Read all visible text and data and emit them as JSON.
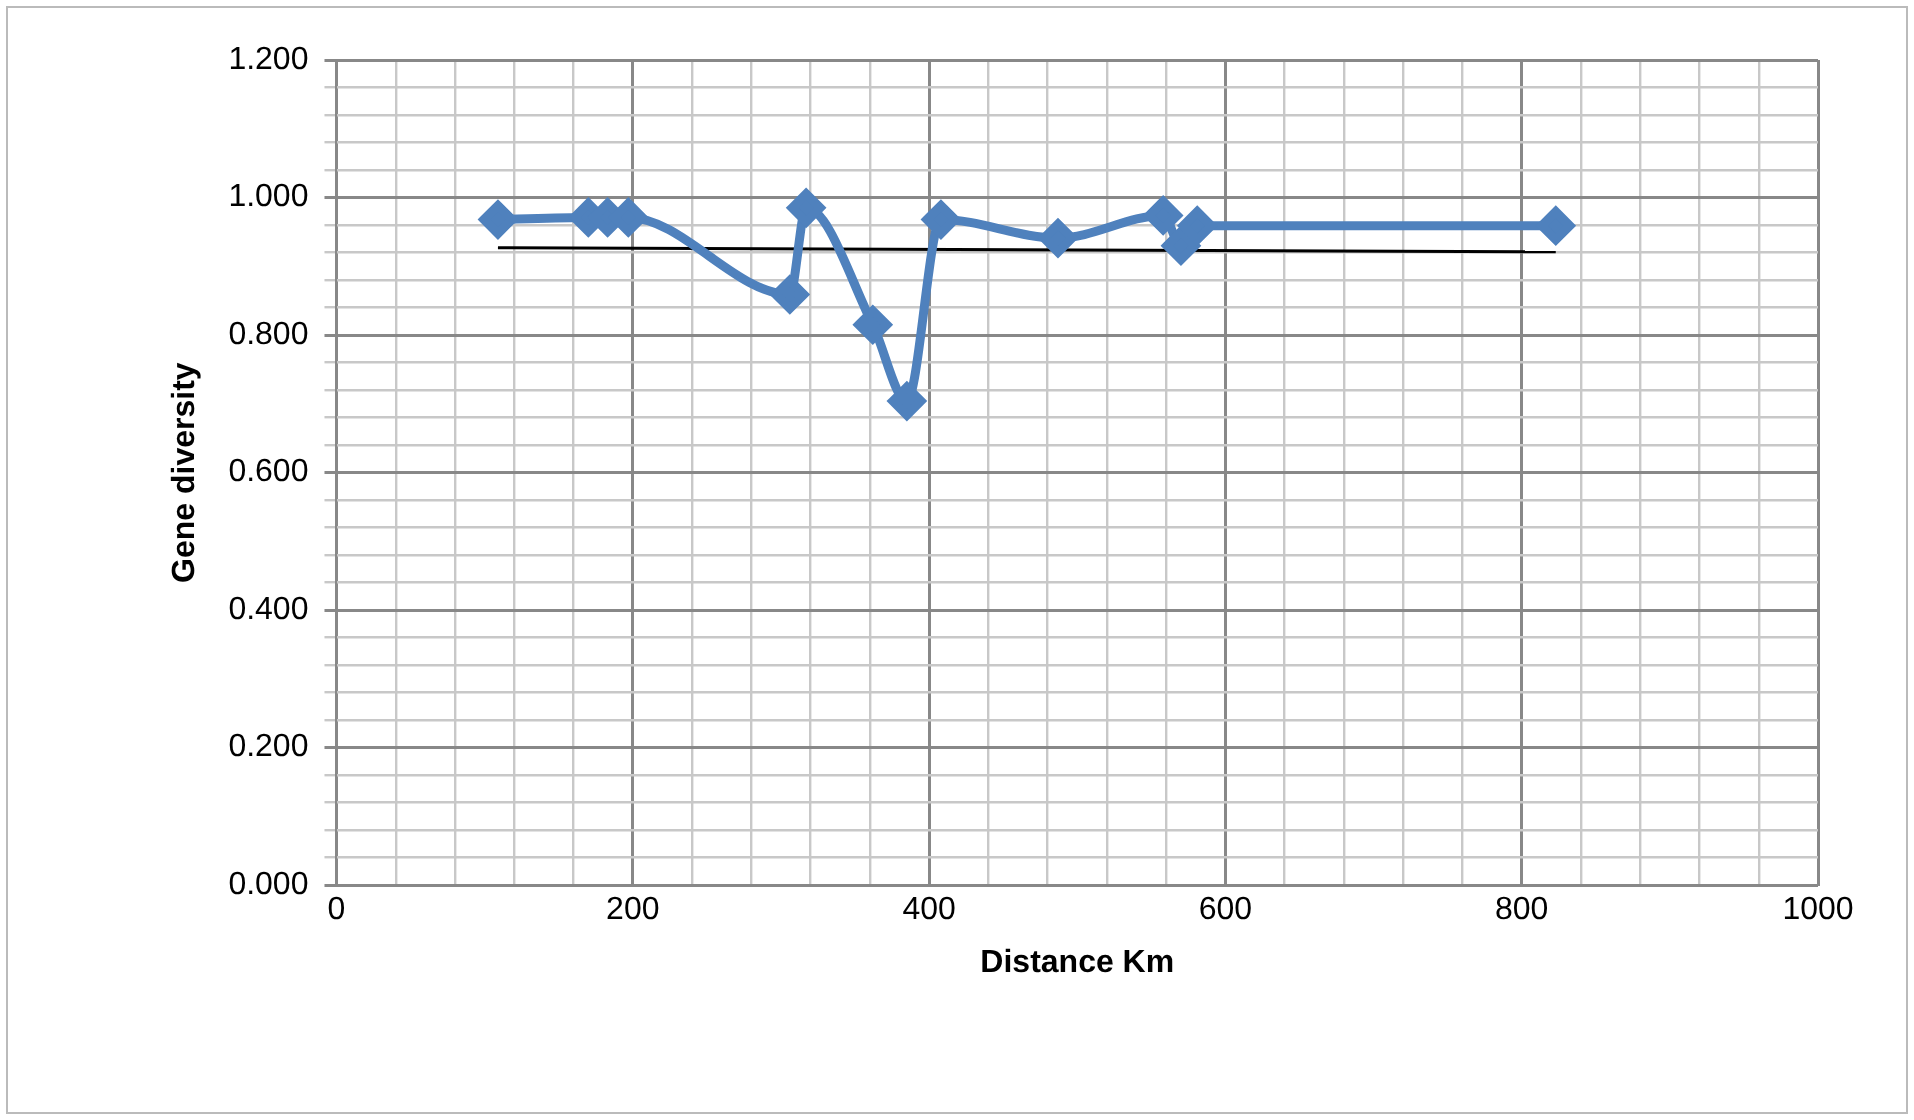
{
  "chart_data": {
    "type": "line",
    "xlabel": "Distance Km",
    "ylabel": "Gene diversity",
    "series": [
      {
        "color": "#4f81bd",
        "marker": "diamond",
        "x": [
          109,
          170,
          183,
          197,
          306,
          317,
          362,
          385,
          408,
          487,
          558,
          570,
          581,
          823
        ],
        "values": [
          0.968,
          0.971,
          0.971,
          0.971,
          0.859,
          0.985,
          0.815,
          0.704,
          0.968,
          0.941,
          0.974,
          0.93,
          0.959,
          0.959
        ]
      },
      {
        "color": "#000000",
        "marker": "none",
        "x": [
          109,
          823
        ],
        "values": [
          0.927,
          0.921
        ]
      }
    ],
    "xlim": [
      0,
      1000
    ],
    "xticks": [
      0,
      {
        "value": 40,
        "label": null
      },
      {
        "value": 80,
        "label": null
      },
      {
        "value": 120,
        "label": null
      },
      {
        "value": 160,
        "label": null
      },
      200,
      {
        "value": 240,
        "label": null
      },
      {
        "value": 280,
        "label": null
      },
      {
        "value": 320,
        "label": null
      },
      {
        "value": 360,
        "label": null
      },
      400,
      {
        "value": 440,
        "label": null
      },
      {
        "value": 480,
        "label": null
      },
      {
        "value": 520,
        "label": null
      },
      {
        "value": 560,
        "label": null
      },
      600,
      {
        "value": 640,
        "label": null
      },
      {
        "value": 680,
        "label": null
      },
      {
        "value": 720,
        "label": null
      },
      {
        "value": 760,
        "label": null
      },
      800,
      {
        "value": 840,
        "label": null
      },
      {
        "value": 880,
        "label": null
      },
      {
        "value": 920,
        "label": null
      },
      {
        "value": 960,
        "label": null
      },
      1000
    ],
    "ylim": [
      0,
      1.2
    ],
    "yticks": [
      {
        "value": 0,
        "label": "0.000"
      },
      {
        "value": 0.04,
        "label": null
      },
      {
        "value": 0.08,
        "label": null
      },
      {
        "value": 0.12,
        "label": null
      },
      {
        "value": 0.16,
        "label": null
      },
      {
        "value": 0.2,
        "label": "0.200"
      },
      {
        "value": 0.24,
        "label": null
      },
      {
        "value": 0.28,
        "label": null
      },
      {
        "value": 0.32,
        "label": null
      },
      {
        "value": 0.36,
        "label": null
      },
      {
        "value": 0.4,
        "label": "0.400"
      },
      {
        "value": 0.44,
        "label": null
      },
      {
        "value": 0.48,
        "label": null
      },
      {
        "value": 0.52,
        "label": null
      },
      {
        "value": 0.56,
        "label": null
      },
      {
        "value": 0.6,
        "label": "0.600"
      },
      {
        "value": 0.64,
        "label": null
      },
      {
        "value": 0.68,
        "label": null
      },
      {
        "value": 0.72,
        "label": null
      },
      {
        "value": 0.76,
        "label": null
      },
      {
        "value": 0.8,
        "label": "0.800"
      },
      {
        "value": 0.84,
        "label": null
      },
      {
        "value": 0.88,
        "label": null
      },
      {
        "value": 0.92,
        "label": null
      },
      {
        "value": 0.96,
        "label": null
      },
      {
        "value": 1.0,
        "label": "1.000"
      },
      {
        "value": 1.04,
        "label": null
      },
      {
        "value": 1.08,
        "label": null
      },
      {
        "value": 1.12,
        "label": null
      },
      {
        "value": 1.16,
        "label": null
      },
      {
        "value": 1.2,
        "label": "1.200"
      }
    ],
    "grid": true,
    "legend": false
  }
}
